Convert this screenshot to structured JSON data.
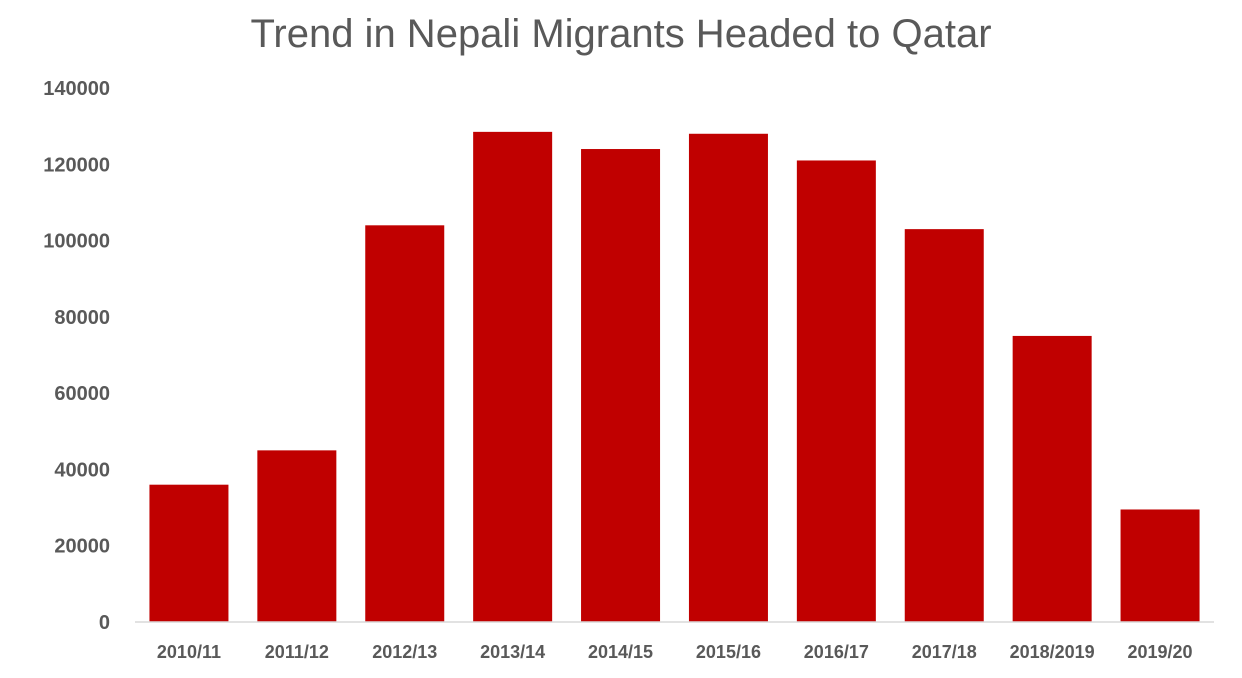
{
  "chart_data": {
    "type": "bar",
    "title": "Trend in Nepali Migrants Headed to Qatar",
    "xlabel": "",
    "ylabel": "",
    "categories": [
      "2010/11",
      "2011/12",
      "2012/13",
      "2013/14",
      "2014/15",
      "2015/16",
      "2016/17",
      "2017/18",
      "2018/2019",
      "2019/20"
    ],
    "values": [
      36000,
      45000,
      104000,
      128500,
      124000,
      128000,
      121000,
      103000,
      75000,
      29500
    ],
    "ylim": [
      0,
      140000
    ],
    "yticks": [
      "0",
      "20000",
      "40000",
      "60000",
      "80000",
      "100000",
      "120000",
      "140000"
    ],
    "grid": false,
    "legend": "none",
    "bar_color": "#C00000",
    "axis_color": "#D9D9D9",
    "text_color": "#595959"
  }
}
